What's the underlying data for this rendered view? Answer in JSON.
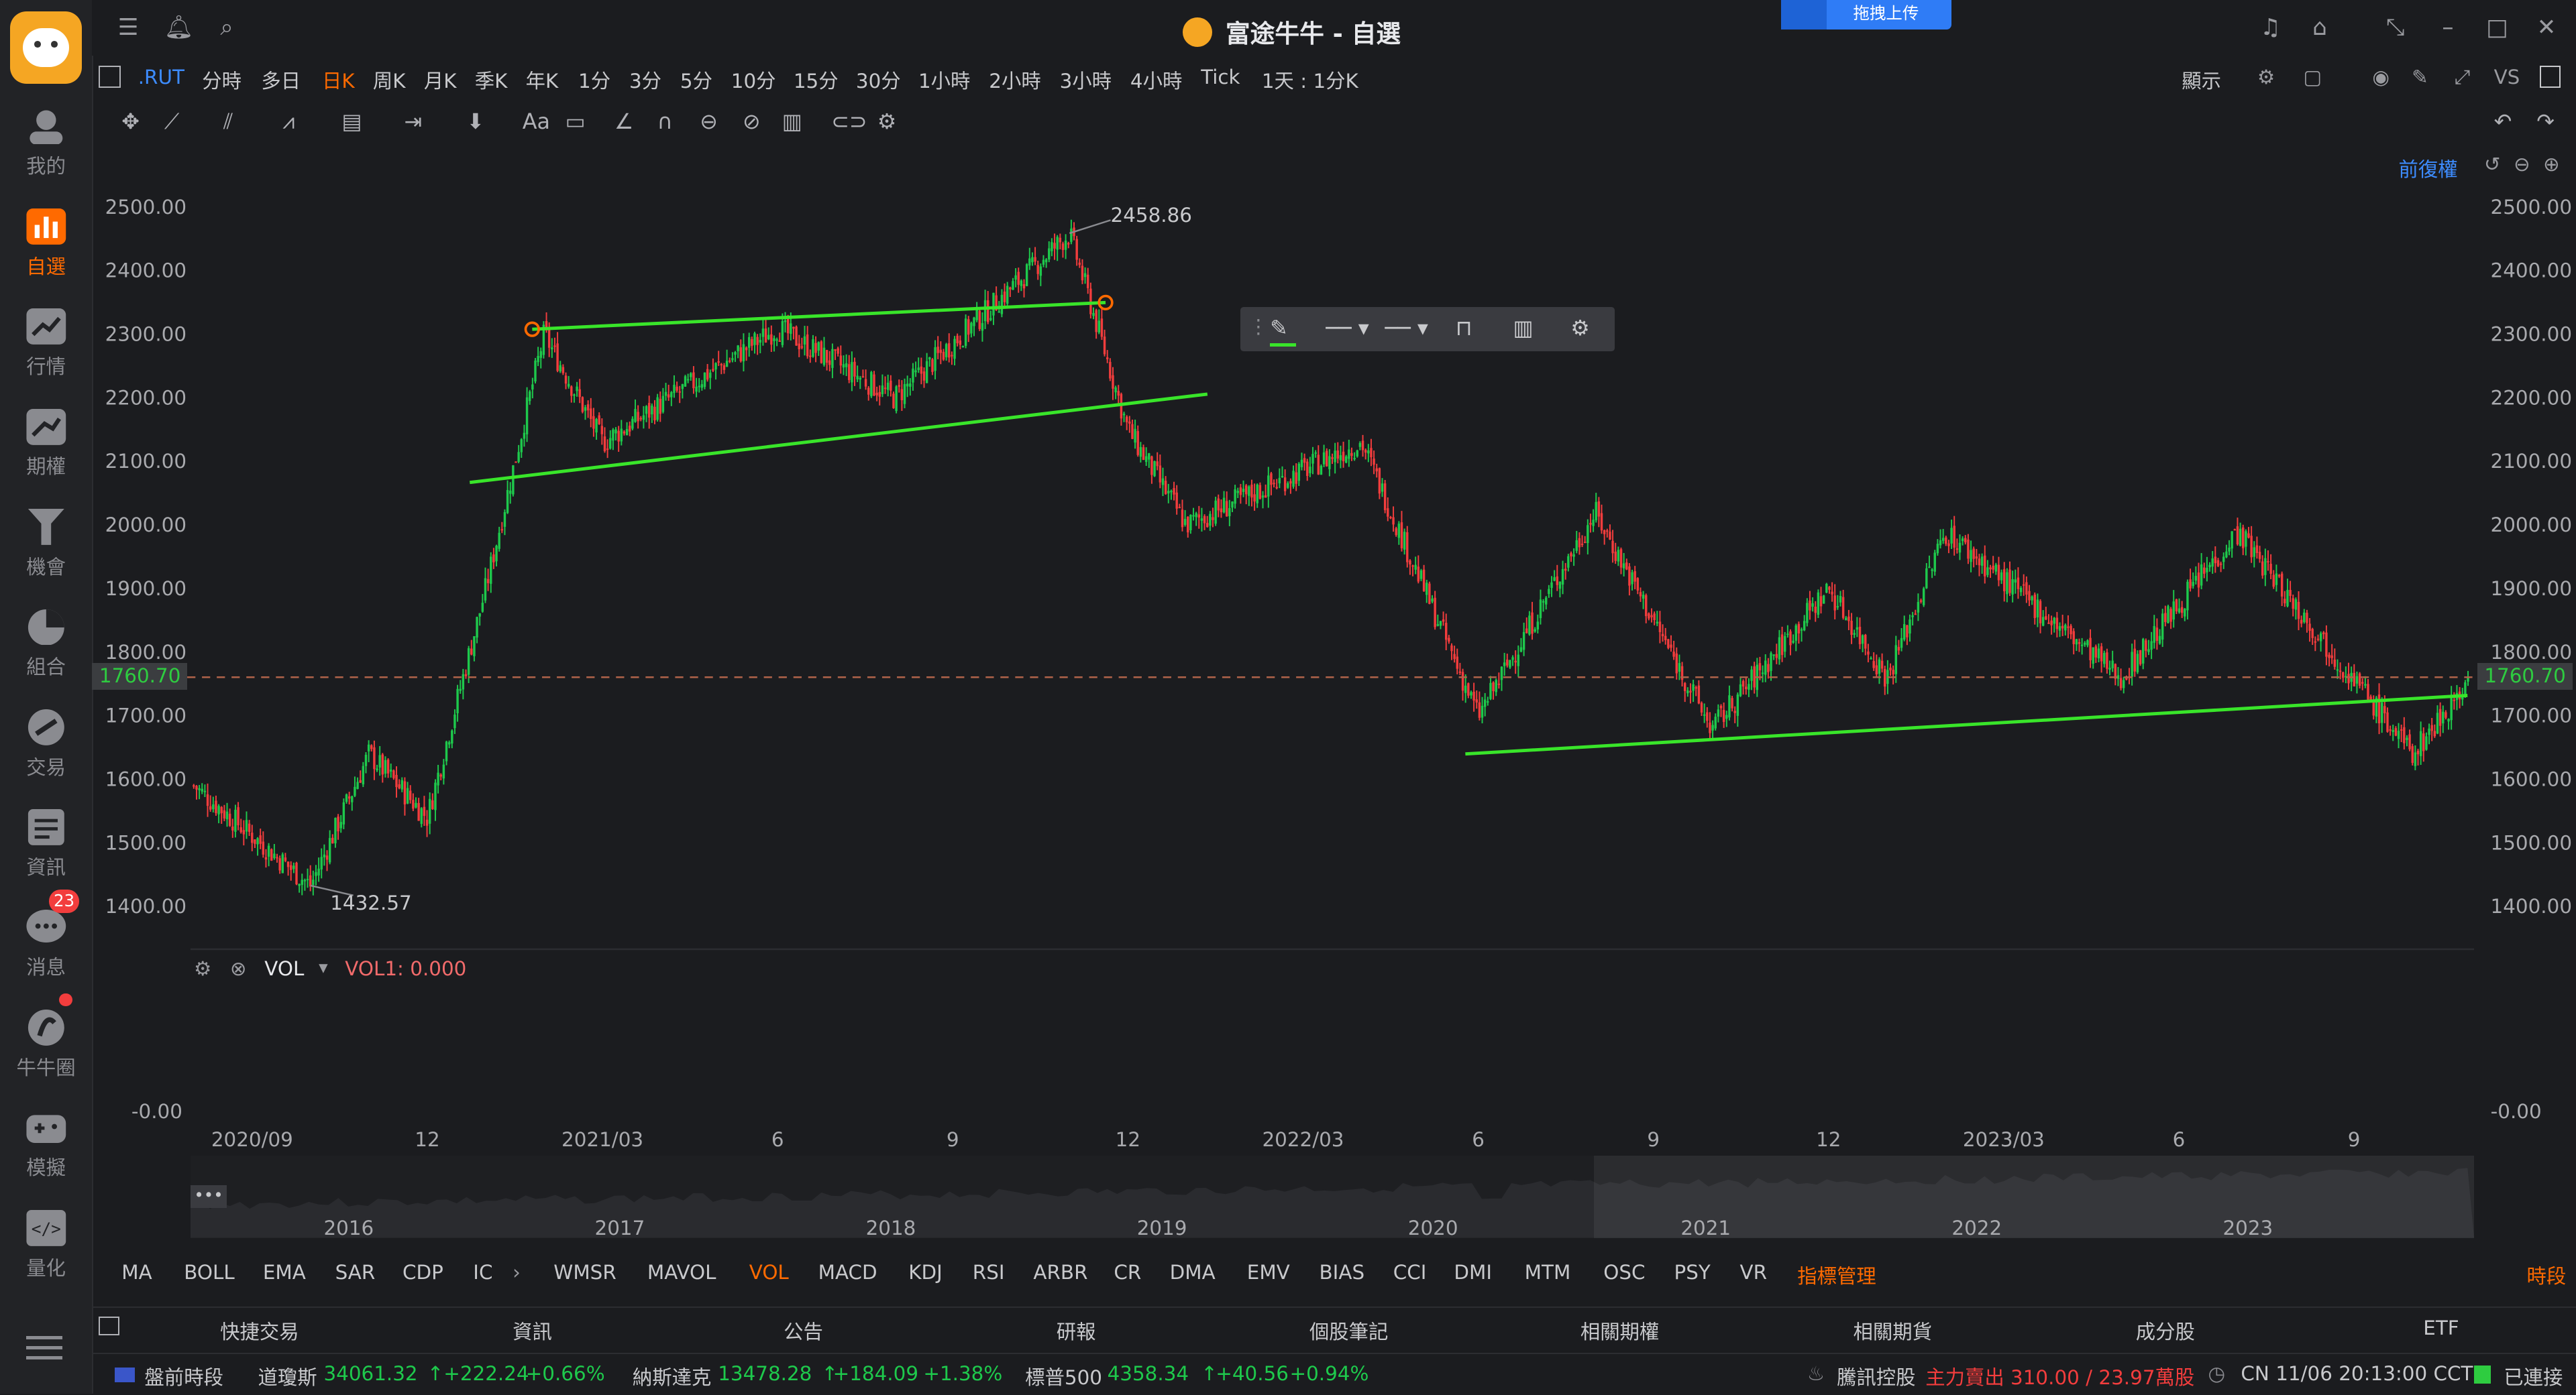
{
  "window": {
    "title": "富途牛牛 - 自選",
    "upload_label": "拖拽上传"
  },
  "sidebar": {
    "items": [
      {
        "label": "我的",
        "icon": "user-icon"
      },
      {
        "label": "自選",
        "icon": "watchlist-icon",
        "active": true
      },
      {
        "label": "行情",
        "icon": "market-icon"
      },
      {
        "label": "期權",
        "icon": "options-icon"
      },
      {
        "label": "機會",
        "icon": "opportunity-icon"
      },
      {
        "label": "組合",
        "icon": "portfolio-icon"
      },
      {
        "label": "交易",
        "icon": "trade-icon"
      },
      {
        "label": "資訊",
        "icon": "news-icon"
      },
      {
        "label": "消息",
        "icon": "message-icon",
        "badge": "23"
      },
      {
        "label": "牛牛圈",
        "icon": "community-icon"
      },
      {
        "label": "模擬",
        "icon": "simulate-icon"
      },
      {
        "label": "量化",
        "icon": "quant-icon"
      }
    ]
  },
  "periodbar": {
    "symbol": ".RUT",
    "periods": [
      "分時",
      "多日",
      "日K",
      "周K",
      "月K",
      "季K",
      "年K",
      "1分",
      "3分",
      "5分",
      "10分",
      "15分",
      "30分",
      "1小時",
      "2小時",
      "3小時",
      "4小時",
      "Tick",
      "1天 : 1分K"
    ],
    "active": "日K",
    "display_label": "顯示",
    "vs_label": "VS"
  },
  "chart": {
    "adjust_label": "前復權",
    "price_line": "1760.70",
    "annotations": {
      "high": "2458.86",
      "low": "1432.57"
    },
    "vol_label": "VOL",
    "vol_value": "VOL1:  0.000",
    "vol_axis": "-0.00",
    "y_ticks": [
      "2500.00",
      "2400.00",
      "2300.00",
      "2200.00",
      "2100.00",
      "2000.00",
      "1900.00",
      "1800.00",
      "1700.00",
      "1600.00",
      "1500.00",
      "1400.00"
    ],
    "x_ticks": [
      "2020/09",
      "12",
      "2021/03",
      "6",
      "9",
      "12",
      "2022/03",
      "6",
      "9",
      "12",
      "2023/03",
      "6",
      "9"
    ],
    "overview_years": [
      "2016",
      "2017",
      "2018",
      "2019",
      "2020",
      "2021",
      "2022",
      "2023"
    ]
  },
  "chart_data": {
    "type": "candlestick",
    "title": "",
    "x_range": [
      "2020/08",
      "2023/11"
    ],
    "ylim": [
      1400,
      2500
    ],
    "points": [
      {
        "x": "2020/08",
        "y": 1590
      },
      {
        "x": "2020/10",
        "y": 1433
      },
      {
        "x": "2020/11",
        "y": 1640
      },
      {
        "x": "2020/12",
        "y": 1540
      },
      {
        "x": "2021/01",
        "y": 1900
      },
      {
        "x": "2021/02",
        "y": 2300
      },
      {
        "x": "2021/03",
        "y": 2130
      },
      {
        "x": "2021/06",
        "y": 2310
      },
      {
        "x": "2021/08",
        "y": 2200
      },
      {
        "x": "2021/11",
        "y": 2459
      },
      {
        "x": "2021/12",
        "y": 2150
      },
      {
        "x": "2022/01",
        "y": 2000
      },
      {
        "x": "2022/04",
        "y": 2130
      },
      {
        "x": "2022/06",
        "y": 1700
      },
      {
        "x": "2022/08",
        "y": 2020
      },
      {
        "x": "2022/10",
        "y": 1680
      },
      {
        "x": "2022/12",
        "y": 1900
      },
      {
        "x": "2023/01",
        "y": 1760
      },
      {
        "x": "2023/02",
        "y": 1990
      },
      {
        "x": "2023/05",
        "y": 1760
      },
      {
        "x": "2023/07",
        "y": 1990
      },
      {
        "x": "2023/10",
        "y": 1640
      },
      {
        "x": "2023/11",
        "y": 1760
      }
    ]
  },
  "indicators": {
    "items": [
      "MA",
      "BOLL",
      "EMA",
      "SAR",
      "CDP",
      "IC",
      "WMSR",
      "MAVOL",
      "VOL",
      "MACD",
      "KDJ",
      "RSI",
      "ARBR",
      "CR",
      "DMA",
      "EMV",
      "BIAS",
      "CCI",
      "DMI",
      "MTM",
      "OSC",
      "PSY",
      "VR"
    ],
    "active": "VOL",
    "manage_label": "指標管理",
    "right_label": "時段"
  },
  "tabs": [
    "快捷交易",
    "資訊",
    "公告",
    "研報",
    "個股筆記",
    "相關期權",
    "相關期貨",
    "成分股",
    "ETF"
  ],
  "status": {
    "session": "盤前時段",
    "indices": [
      {
        "name": "道瓊斯",
        "value": "34061.32",
        "change": "+222.24",
        "pct": "+0.66%"
      },
      {
        "name": "納斯達克",
        "value": "13478.28",
        "change": "+184.09",
        "pct": "+1.38%"
      },
      {
        "name": "標普500",
        "value": "4358.34",
        "change": "+40.56",
        "pct": "+0.94%"
      }
    ],
    "ticker_name": "騰訊控股",
    "ticker_info": "主力賣出 310.00 / 23.97萬股",
    "time": "CN 11/06 20:13:00 CCT",
    "connection": "已連接"
  },
  "colors": {
    "accent": "#ff6a00",
    "up": "#1ec94c",
    "down": "#f23d3d",
    "trend": "#39e52a"
  }
}
